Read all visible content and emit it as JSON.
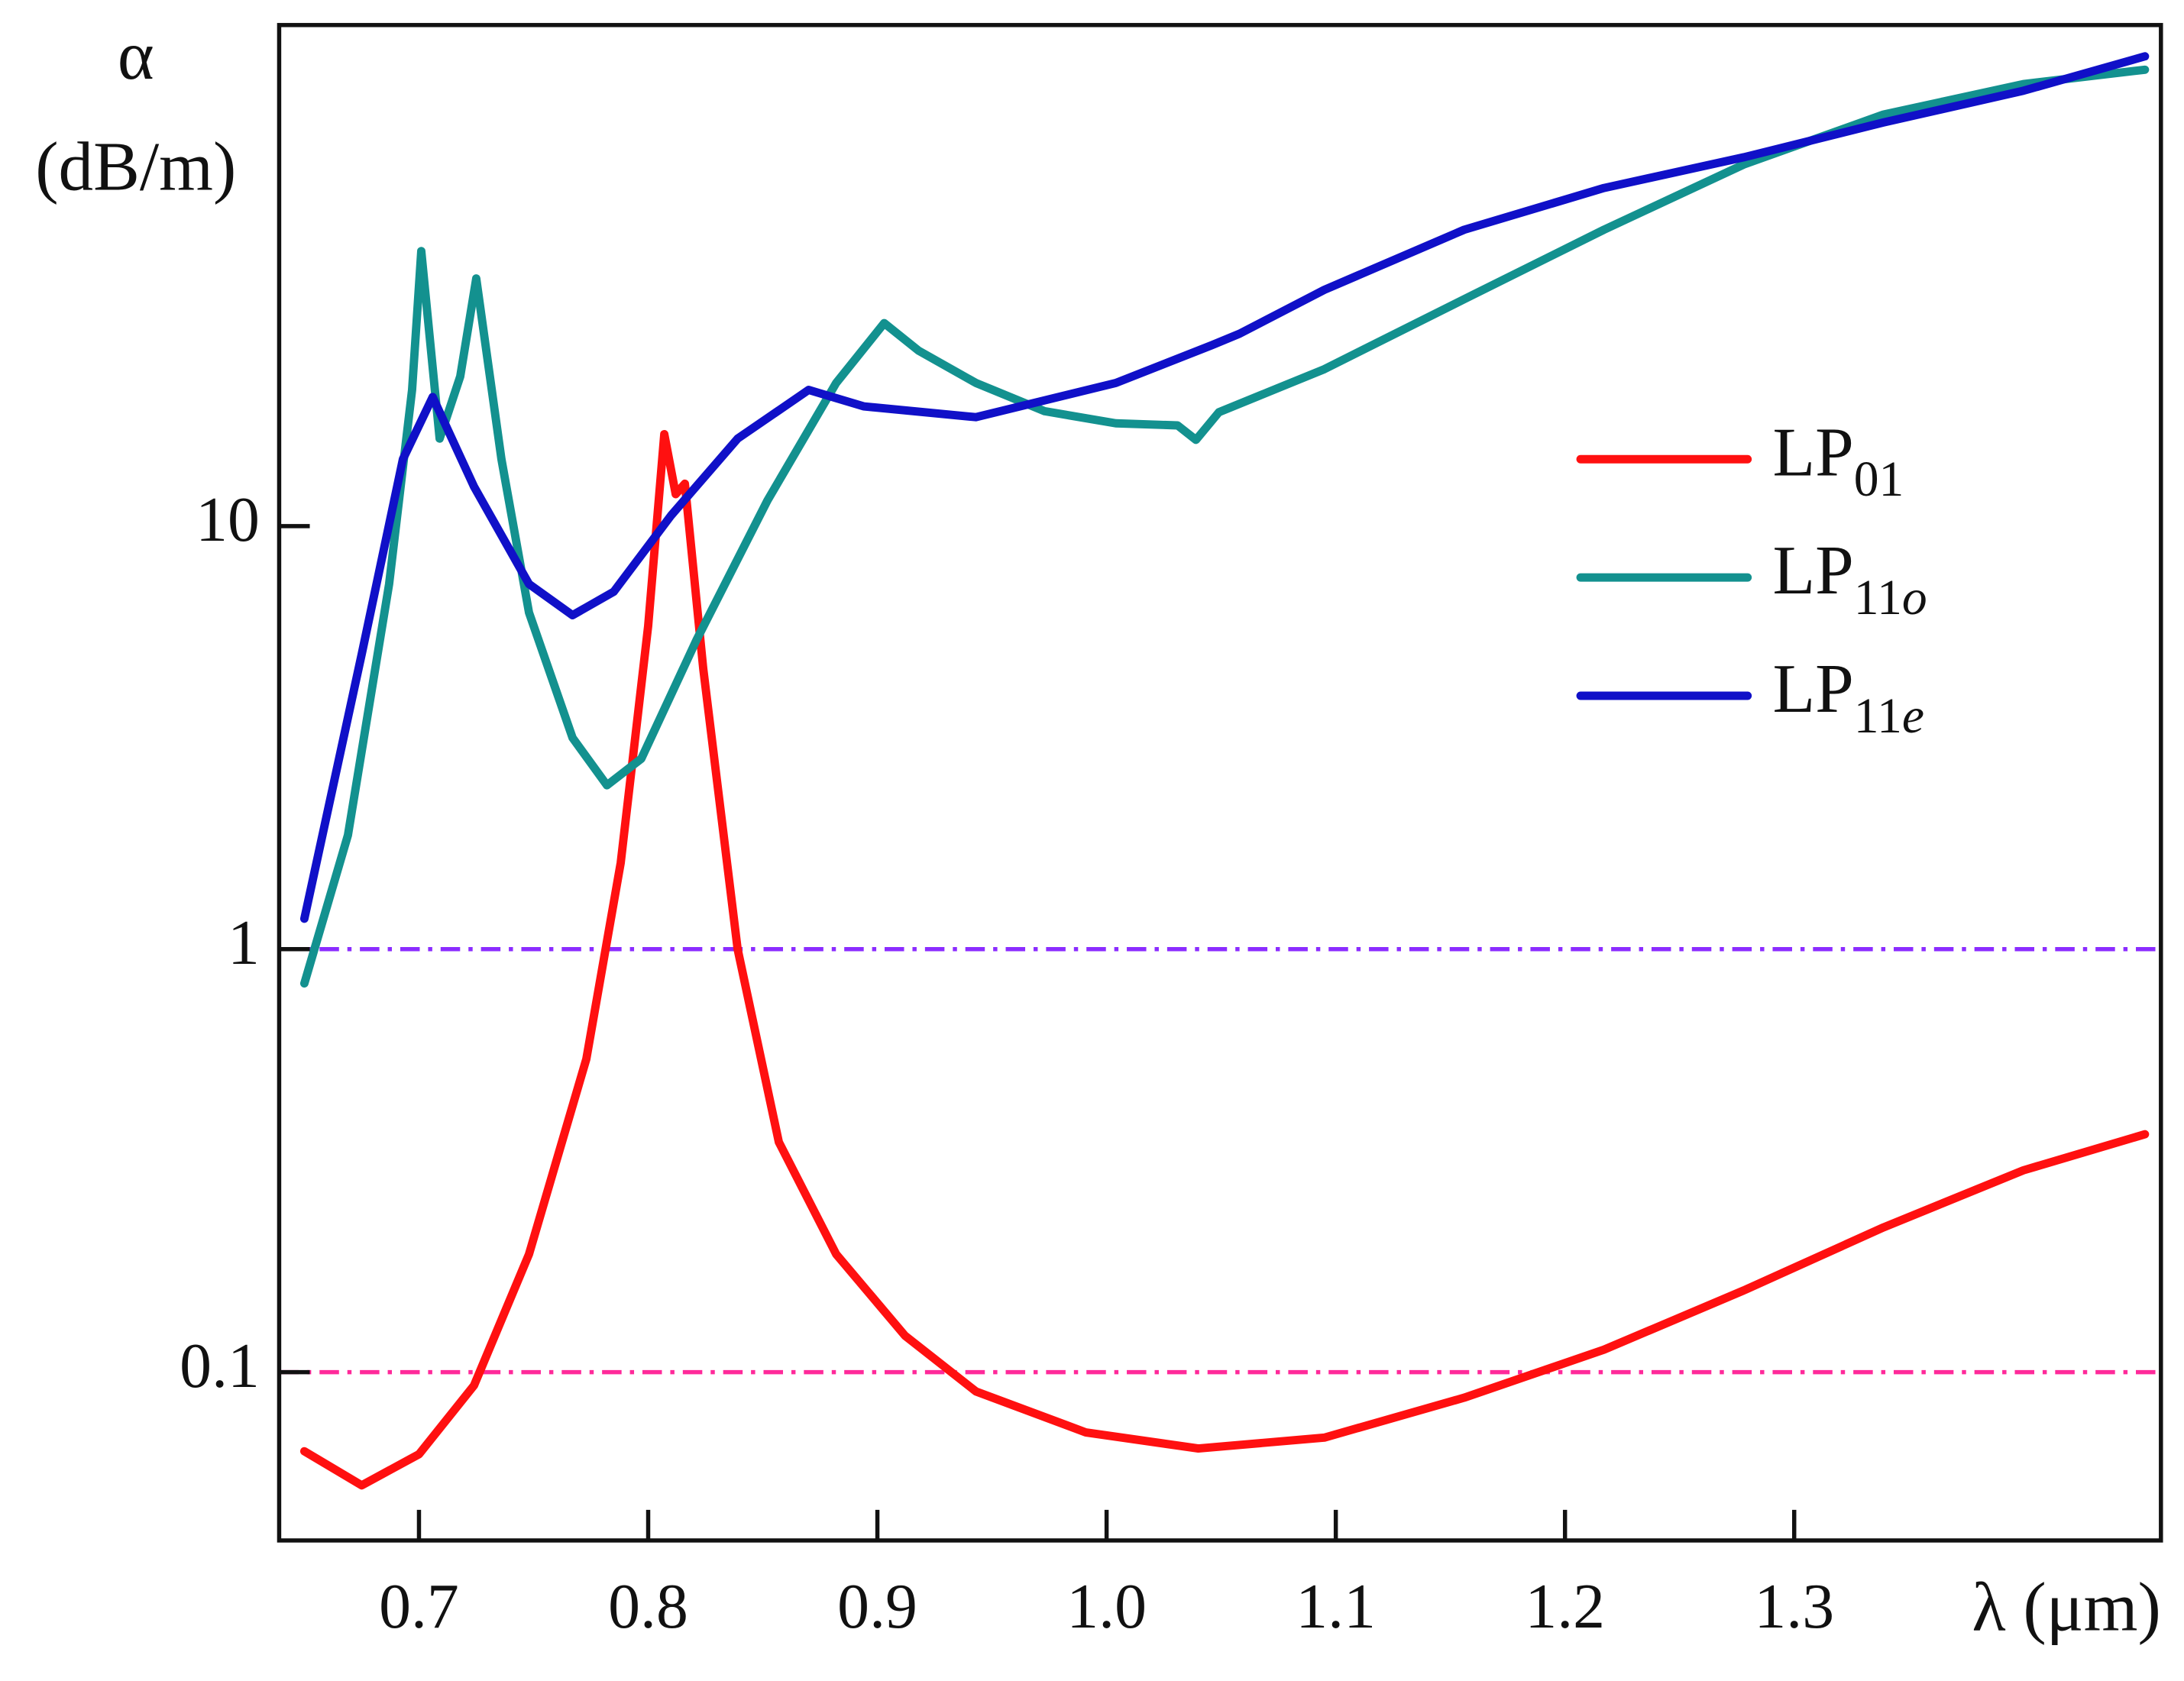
{
  "chart_data": {
    "type": "line",
    "x_label": "λ (μm)",
    "y_label_symbol": "α",
    "y_label_unit": "(dB/m)",
    "xlim": [
      0.639,
      1.46
    ],
    "ylim": [
      0.04,
      153
    ],
    "log_y": true,
    "xticks": [
      0.7,
      0.8,
      0.9,
      {
        "value": 1.0,
        "label": "1.0"
      },
      1.1,
      1.2,
      1.3
    ],
    "yticks": [
      0.1,
      1,
      10
    ],
    "legend": "right",
    "hlines": [
      {
        "value": 1,
        "color": "#8b2cff"
      },
      {
        "value": 0.1,
        "color": "#ff2a9a"
      }
    ],
    "series": [
      {
        "name": "LP01",
        "color": "#ff1010",
        "x": [
          0.65,
          0.675,
          0.7,
          0.724,
          0.748,
          0.773,
          0.788,
          0.8,
          0.807,
          0.812,
          0.816,
          0.824,
          0.839,
          0.857,
          0.882,
          0.912,
          0.943,
          0.991,
          1.04,
          1.095,
          1.156,
          1.217,
          1.278,
          1.339,
          1.4,
          1.453
        ],
        "values": [
          0.065,
          0.054,
          0.064,
          0.093,
          0.19,
          0.55,
          1.6,
          5.8,
          16.5,
          11.9,
          12.6,
          4.6,
          1.0,
          0.35,
          0.19,
          0.122,
          0.09,
          0.072,
          0.066,
          0.07,
          0.087,
          0.113,
          0.156,
          0.22,
          0.3,
          0.365
        ]
      },
      {
        "name": "LP11o",
        "color": "#13918f",
        "x": [
          0.65,
          0.669,
          0.687,
          0.697,
          0.701,
          0.709,
          0.718,
          0.725,
          0.736,
          0.748,
          0.767,
          0.782,
          0.797,
          0.821,
          0.852,
          0.882,
          0.903,
          0.918,
          0.943,
          0.973,
          1.004,
          1.031,
          1.039,
          1.049,
          1.095,
          1.156,
          1.217,
          1.278,
          1.339,
          1.4,
          1.453
        ],
        "values": [
          0.83,
          1.86,
          7.3,
          21,
          44.7,
          16.1,
          22.6,
          38.5,
          14.4,
          6.25,
          3.16,
          2.44,
          2.82,
          5.37,
          11.5,
          21.8,
          30.2,
          26,
          21.8,
          18.7,
          17.5,
          17.3,
          16,
          18.6,
          23.5,
          34.4,
          50.2,
          71.6,
          94,
          111,
          120
        ]
      },
      {
        "name": "LP11e",
        "color": "#1010c8",
        "x": [
          0.65,
          0.675,
          0.693,
          0.706,
          0.724,
          0.748,
          0.767,
          0.785,
          0.81,
          0.839,
          0.87,
          0.894,
          0.943,
          1.004,
          1.046,
          1.058,
          1.095,
          1.156,
          1.217,
          1.278,
          1.339,
          1.4,
          1.453
        ],
        "values": [
          1.18,
          4.98,
          14.4,
          20.2,
          12.4,
          7.3,
          6.16,
          7.0,
          10.6,
          16.1,
          21,
          19.2,
          18.1,
          21.8,
          26.8,
          28.5,
          36.2,
          50.2,
          63,
          74.5,
          90,
          107,
          129
        ]
      }
    ]
  }
}
